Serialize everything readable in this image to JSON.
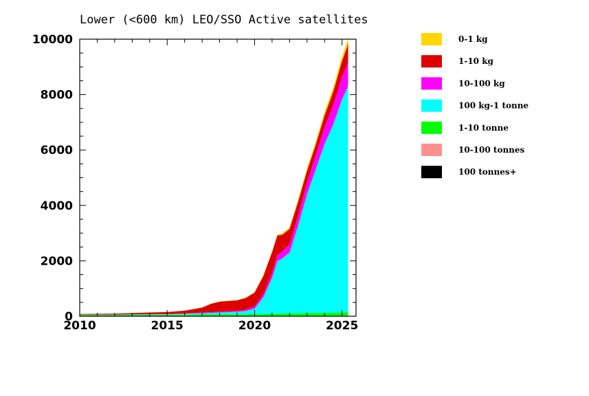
{
  "chart_data": {
    "type": "area",
    "stacked": true,
    "title": "Lower (<600 km) LEO/SSO Active satellites",
    "xlim": [
      2010,
      2025.8
    ],
    "ylim": [
      0,
      10000
    ],
    "xticks": [
      2010,
      2015,
      2020,
      2025
    ],
    "yticks": [
      0,
      2000,
      4000,
      6000,
      8000,
      10000
    ],
    "legend_position": "right",
    "x": [
      2010,
      2012,
      2014,
      2015,
      2016,
      2017,
      2017.5,
      2018,
      2019,
      2019.5,
      2020,
      2020.5,
      2021,
      2021.3,
      2021.6,
      2022,
      2022.5,
      2023,
      2023.5,
      2024,
      2024.5,
      2025,
      2025.3,
      2025.35
    ],
    "series": [
      {
        "name": "100 tonnes+",
        "color": "#000000",
        "values": [
          2,
          2,
          2,
          2,
          2,
          2,
          2,
          2,
          2,
          2,
          2,
          2,
          2,
          2,
          2,
          2,
          2,
          2,
          2,
          2,
          2,
          2,
          2,
          2
        ]
      },
      {
        "name": "10-100 tonnes",
        "color": "#ff9090",
        "values": [
          5,
          5,
          5,
          5,
          5,
          5,
          5,
          5,
          5,
          5,
          5,
          5,
          5,
          5,
          5,
          5,
          5,
          5,
          5,
          5,
          5,
          5,
          5,
          5
        ]
      },
      {
        "name": "1-10 tonne",
        "color": "#00ff00",
        "values": [
          40,
          40,
          45,
          45,
          50,
          55,
          55,
          60,
          60,
          65,
          70,
          75,
          80,
          85,
          90,
          95,
          100,
          105,
          110,
          115,
          120,
          125,
          130,
          130
        ]
      },
      {
        "name": "100 kg-1 tonne",
        "color": "#00ffff",
        "values": [
          10,
          10,
          15,
          20,
          30,
          50,
          60,
          70,
          90,
          120,
          200,
          600,
          1300,
          1900,
          2000,
          2200,
          3200,
          4300,
          5200,
          6100,
          6800,
          7700,
          8100,
          8200
        ]
      },
      {
        "name": "10-100 kg",
        "color": "#ff00ff",
        "values": [
          3,
          5,
          8,
          10,
          15,
          20,
          25,
          30,
          40,
          50,
          80,
          120,
          180,
          220,
          250,
          300,
          350,
          420,
          500,
          600,
          700,
          800,
          850,
          850
        ]
      },
      {
        "name": "1-10 kg",
        "color": "#dd0000",
        "values": [
          20,
          30,
          60,
          70,
          100,
          180,
          300,
          360,
          380,
          420,
          500,
          650,
          750,
          700,
          600,
          550,
          500,
          420,
          380,
          420,
          480,
          580,
          650,
          700
        ]
      },
      {
        "name": "0-1 kg",
        "color": "#ffd700",
        "values": [
          2,
          2,
          3,
          3,
          5,
          8,
          10,
          10,
          10,
          12,
          15,
          20,
          30,
          40,
          50,
          60,
          80,
          100,
          120,
          140,
          160,
          180,
          200,
          200
        ]
      }
    ],
    "legend_order": [
      "0-1 kg",
      "1-10 kg",
      "10-100 kg",
      "100 kg-1 tonne",
      "1-10 tonne",
      "10-100 tonnes",
      "100 tonnes+"
    ]
  }
}
